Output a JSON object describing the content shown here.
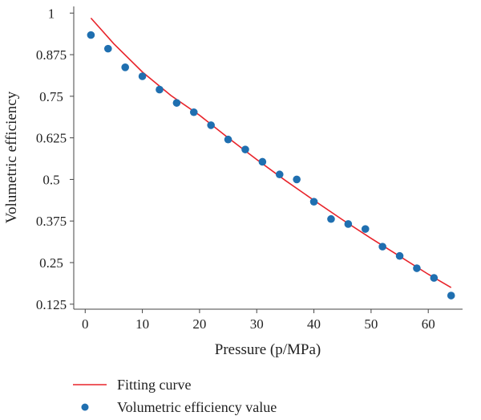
{
  "chart_data": {
    "type": "scatter",
    "xlabel": "Pressure (p/MPa)",
    "ylabel": "Volumetric efficiency",
    "xlim": [
      -2,
      66
    ],
    "ylim": [
      0.11,
      1.02
    ],
    "xticks": [
      0,
      10,
      20,
      30,
      40,
      50,
      60
    ],
    "xtick_labels": [
      "0",
      "10",
      "20",
      "30",
      "40",
      "50",
      "60"
    ],
    "yticks": [
      0.125,
      0.25,
      0.375,
      0.5,
      0.625,
      0.75,
      0.875,
      1
    ],
    "ytick_labels": [
      "0.125",
      "0.25",
      "0.375",
      "0.5",
      "0.625",
      "0.75",
      "0.875",
      "1"
    ],
    "grid": false,
    "legend_position": "bottom-left",
    "series": [
      {
        "name": "Fitting curve",
        "kind": "line",
        "color": "#e8232a",
        "x": [
          1,
          5,
          10,
          15,
          20,
          25,
          30,
          35,
          40,
          45,
          50,
          55,
          60,
          64
        ],
        "y": [
          0.985,
          0.908,
          0.823,
          0.752,
          0.693,
          0.625,
          0.56,
          0.497,
          0.437,
          0.379,
          0.323,
          0.269,
          0.215,
          0.175
        ]
      },
      {
        "name": "Volumetric efficiency value",
        "kind": "scatter",
        "color": "#1f6fb0",
        "x": [
          1,
          4,
          7,
          10,
          13,
          16,
          19,
          22,
          25,
          28,
          31,
          34,
          37,
          40,
          43,
          46,
          49,
          52,
          55,
          58,
          61,
          64
        ],
        "y": [
          0.934,
          0.893,
          0.837,
          0.81,
          0.77,
          0.73,
          0.702,
          0.663,
          0.62,
          0.59,
          0.553,
          0.515,
          0.5,
          0.433,
          0.381,
          0.366,
          0.351,
          0.298,
          0.27,
          0.233,
          0.204,
          0.151
        ]
      }
    ]
  }
}
